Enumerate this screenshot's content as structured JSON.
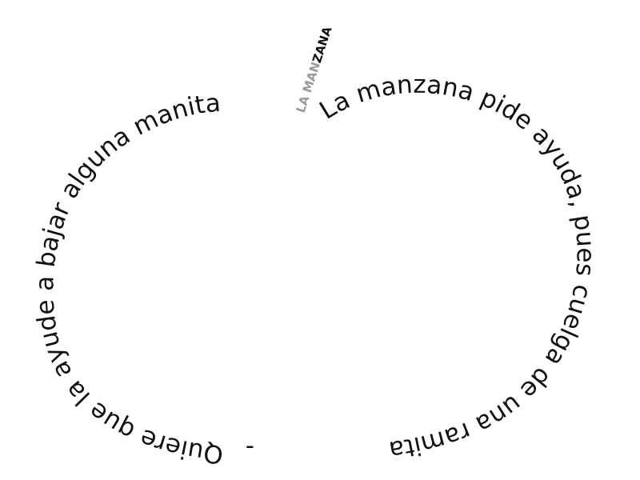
{
  "calligram": {
    "stem": {
      "light": "LA MAN",
      "dark": "ZANA"
    },
    "right_arc": "La manzana pide ayuda, pues cuelga de una ramita",
    "dash": "-",
    "left_arc": "Quiere que la ayude a bajar alguna manita"
  },
  "colors": {
    "text": "#111111",
    "stem_light": "#9a9a9a",
    "stem_dark": "#111111",
    "background": "#ffffff"
  }
}
